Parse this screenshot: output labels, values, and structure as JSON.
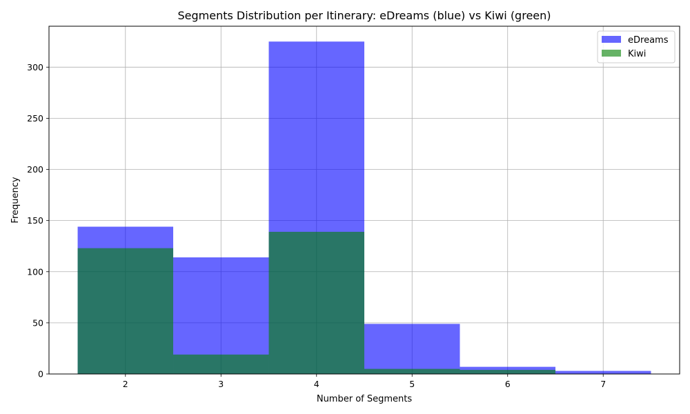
{
  "chart_data": {
    "type": "bar",
    "title": "Segments Distribution per Itinerary: eDreams (blue) vs Kiwi (green)",
    "xlabel": "Number of Segments",
    "ylabel": "Frequency",
    "categories": [
      2,
      3,
      4,
      5,
      6,
      7
    ],
    "xlim": [
      1.2,
      7.8
    ],
    "ylim": [
      0,
      340
    ],
    "x_ticks": [
      "2",
      "3",
      "4",
      "5",
      "6",
      "7"
    ],
    "y_ticks": [
      "0",
      "50",
      "100",
      "150",
      "200",
      "250",
      "300"
    ],
    "grid": true,
    "legend_position": "top-right",
    "overlay": true,
    "series": [
      {
        "name": "eDreams",
        "color": "#0000ff",
        "opacity": 0.6,
        "values": [
          144,
          114,
          325,
          49,
          7,
          3
        ]
      },
      {
        "name": "Kiwi",
        "color": "#008000",
        "opacity": 0.6,
        "values": [
          123,
          19,
          139,
          5,
          4,
          0
        ]
      }
    ]
  }
}
